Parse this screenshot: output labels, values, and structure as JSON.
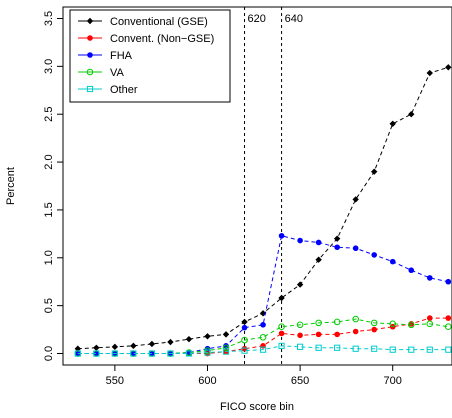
{
  "chart_data": {
    "type": "line",
    "xlabel": "FICO score bin",
    "ylabel": "Percent",
    "xlim": [
      522,
      732
    ],
    "ylim": [
      -0.12,
      3.62
    ],
    "xticks": [
      550,
      600,
      650,
      700
    ],
    "yticks": [
      0.0,
      0.5,
      1.0,
      1.5,
      2.0,
      2.5,
      3.0,
      3.5
    ],
    "xtick_labels": [
      "550",
      "600",
      "650",
      "700"
    ],
    "ytick_labels": [
      "0.0",
      "0.5",
      "1.0",
      "1.5",
      "2.0",
      "2.5",
      "3.0",
      "3.5"
    ],
    "grid": false,
    "legend_position": "top-left",
    "vlines": [
      {
        "x": 620,
        "label": "620"
      },
      {
        "x": 640,
        "label": "640"
      }
    ],
    "x": [
      530,
      535,
      540,
      545,
      550,
      555,
      560,
      565,
      570,
      575,
      580,
      585,
      590,
      595,
      600,
      605,
      610,
      615,
      620,
      625,
      630,
      635,
      640,
      645,
      650,
      655,
      660,
      665,
      670,
      675,
      680,
      685,
      690,
      695,
      700,
      705,
      710,
      715,
      720,
      725,
      730
    ],
    "series": [
      {
        "name": "Conventional (GSE)",
        "color": "#000000",
        "marker": "diamond",
        "x": [
          530,
          540,
          550,
          560,
          570,
          580,
          590,
          600,
          610,
          620,
          630,
          640,
          650,
          660,
          670,
          680,
          690,
          700,
          710,
          720,
          730
        ],
        "values": [
          0.05,
          0.06,
          0.07,
          0.08,
          0.1,
          0.12,
          0.15,
          0.18,
          0.2,
          0.33,
          0.42,
          0.58,
          0.72,
          0.98,
          1.2,
          1.61,
          1.9,
          2.4,
          2.5,
          2.93,
          2.99
        ]
      },
      {
        "name": "Convent. (Non−GSE)",
        "color": "#ff0000",
        "marker": "filled-circle",
        "x": [
          530,
          540,
          550,
          560,
          570,
          580,
          590,
          600,
          610,
          620,
          630,
          640,
          650,
          660,
          670,
          680,
          690,
          700,
          710,
          720,
          730
        ],
        "values": [
          0.0,
          0.0,
          0.0,
          0.0,
          0.0,
          0.0,
          0.0,
          0.0,
          0.02,
          0.05,
          0.08,
          0.21,
          0.19,
          0.2,
          0.2,
          0.23,
          0.25,
          0.28,
          0.31,
          0.37,
          0.37
        ]
      },
      {
        "name": "FHA",
        "color": "#0000ff",
        "marker": "filled-circle",
        "x": [
          530,
          540,
          550,
          560,
          570,
          580,
          590,
          600,
          610,
          620,
          630,
          640,
          650,
          660,
          670,
          680,
          690,
          700,
          710,
          720,
          730
        ],
        "values": [
          0.0,
          0.0,
          0.0,
          0.0,
          0.0,
          0.0,
          0.01,
          0.05,
          0.08,
          0.27,
          0.3,
          1.23,
          1.18,
          1.16,
          1.11,
          1.1,
          1.03,
          0.96,
          0.87,
          0.79,
          0.75
        ]
      },
      {
        "name": "VA",
        "color": "#00cc00",
        "marker": "open-circle",
        "x": [
          530,
          540,
          550,
          560,
          570,
          580,
          590,
          600,
          610,
          620,
          630,
          640,
          650,
          660,
          670,
          680,
          690,
          700,
          710,
          720,
          730
        ],
        "values": [
          0.0,
          0.0,
          0.0,
          0.0,
          0.0,
          0.0,
          0.01,
          0.03,
          0.06,
          0.14,
          0.17,
          0.28,
          0.3,
          0.32,
          0.33,
          0.36,
          0.32,
          0.31,
          0.3,
          0.31,
          0.28
        ]
      },
      {
        "name": "Other",
        "color": "#00cccc",
        "marker": "open-square",
        "x": [
          530,
          540,
          550,
          560,
          570,
          580,
          590,
          600,
          610,
          620,
          630,
          640,
          650,
          660,
          670,
          680,
          690,
          700,
          710,
          720,
          730
        ],
        "values": [
          0.0,
          0.0,
          0.0,
          0.0,
          0.0,
          0.0,
          0.0,
          0.01,
          0.02,
          0.03,
          0.04,
          0.08,
          0.07,
          0.06,
          0.06,
          0.05,
          0.05,
          0.04,
          0.04,
          0.04,
          0.04
        ]
      }
    ]
  }
}
